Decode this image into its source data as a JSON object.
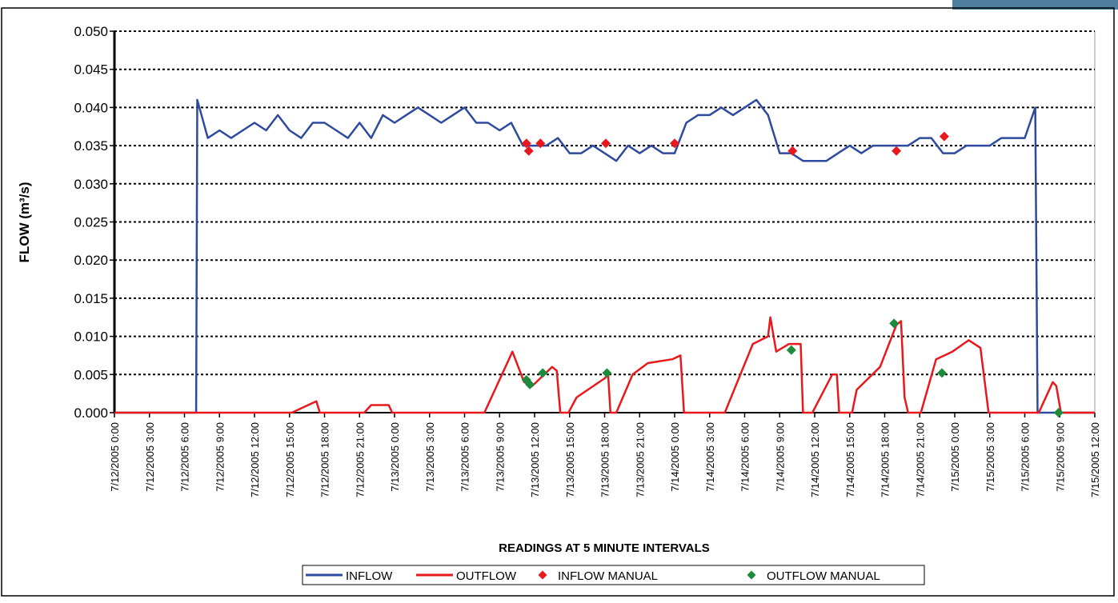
{
  "chart_data": {
    "type": "line",
    "ylabel": "FLOW (m³/s)",
    "xlabel": "READINGS AT 5 MINUTE INTERVALS",
    "xlim": [
      "2005-07-12T00:00",
      "2005-07-15T12:00"
    ],
    "ylim": [
      0,
      0.05
    ],
    "grid": true,
    "legend": "bottom",
    "yticks": [
      {
        "value": 0,
        "label": "0.000"
      },
      {
        "value": 0.005,
        "label": "0.005"
      },
      {
        "value": 0.01,
        "label": "0.010"
      },
      {
        "value": 0.015,
        "label": "0.015"
      },
      {
        "value": 0.02,
        "label": "0.020"
      },
      {
        "value": 0.025,
        "label": "0.025"
      },
      {
        "value": 0.03,
        "label": "0.030"
      },
      {
        "value": 0.035,
        "label": "0.035"
      },
      {
        "value": 0.04,
        "label": "0.040"
      },
      {
        "value": 0.045,
        "label": "0.045"
      },
      {
        "value": 0.05,
        "label": "0.050"
      }
    ],
    "xticks": [
      {
        "value": "2005-07-12T00:00",
        "label": "7/12/2005 0:00"
      },
      {
        "value": "2005-07-12T03:00",
        "label": "7/12/2005 3:00"
      },
      {
        "value": "2005-07-12T06:00",
        "label": "7/12/2005 6:00"
      },
      {
        "value": "2005-07-12T09:00",
        "label": "7/12/2005 9:00"
      },
      {
        "value": "2005-07-12T12:00",
        "label": "7/12/2005 12:00"
      },
      {
        "value": "2005-07-12T15:00",
        "label": "7/12/2005 15:00"
      },
      {
        "value": "2005-07-12T18:00",
        "label": "7/12/2005 18:00"
      },
      {
        "value": "2005-07-12T21:00",
        "label": "7/12/2005 21:00"
      },
      {
        "value": "2005-07-13T00:00",
        "label": "7/13/2005 0:00"
      },
      {
        "value": "2005-07-13T03:00",
        "label": "7/13/2005 3:00"
      },
      {
        "value": "2005-07-13T06:00",
        "label": "7/13/2005 6:00"
      },
      {
        "value": "2005-07-13T09:00",
        "label": "7/13/2005 9:00"
      },
      {
        "value": "2005-07-13T12:00",
        "label": "7/13/2005 12:00"
      },
      {
        "value": "2005-07-13T15:00",
        "label": "7/13/2005 15:00"
      },
      {
        "value": "2005-07-13T18:00",
        "label": "7/13/2005 18:00"
      },
      {
        "value": "2005-07-13T21:00",
        "label": "7/13/2005 21:00"
      },
      {
        "value": "2005-07-14T00:00",
        "label": "7/14/2005 0:00"
      },
      {
        "value": "2005-07-14T03:00",
        "label": "7/14/2005 3:00"
      },
      {
        "value": "2005-07-14T06:00",
        "label": "7/14/2005 6:00"
      },
      {
        "value": "2005-07-14T09:00",
        "label": "7/14/2005 9:00"
      },
      {
        "value": "2005-07-14T12:00",
        "label": "7/14/2005 12:00"
      },
      {
        "value": "2005-07-14T15:00",
        "label": "7/14/2005 15:00"
      },
      {
        "value": "2005-07-14T18:00",
        "label": "7/14/2005 18:00"
      },
      {
        "value": "2005-07-14T21:00",
        "label": "7/14/2005 21:00"
      },
      {
        "value": "2005-07-15T00:00",
        "label": "7/15/2005 0:00"
      },
      {
        "value": "2005-07-15T03:00",
        "label": "7/15/2005 3:00"
      },
      {
        "value": "2005-07-15T06:00",
        "label": "7/15/2005 6:00"
      },
      {
        "value": "2005-07-15T09:00",
        "label": "7/15/2005 9:00"
      },
      {
        "value": "2005-07-15T12:00",
        "label": "7/15/2005 12:00"
      }
    ],
    "series": [
      {
        "name": "INFLOW",
        "color": "#2e4a9e",
        "style": "line",
        "x": [
          "2005-07-12T00:00",
          "2005-07-12T07:00",
          "2005-07-12T07:06",
          "2005-07-12T08:00",
          "2005-07-12T09:00",
          "2005-07-12T10:00",
          "2005-07-12T11:00",
          "2005-07-12T12:00",
          "2005-07-12T13:00",
          "2005-07-12T14:00",
          "2005-07-12T15:00",
          "2005-07-12T16:00",
          "2005-07-12T17:00",
          "2005-07-12T18:00",
          "2005-07-12T19:00",
          "2005-07-12T20:00",
          "2005-07-12T21:00",
          "2005-07-12T22:00",
          "2005-07-12T23:00",
          "2005-07-13T00:00",
          "2005-07-13T01:00",
          "2005-07-13T02:00",
          "2005-07-13T03:00",
          "2005-07-13T04:00",
          "2005-07-13T05:00",
          "2005-07-13T06:00",
          "2005-07-13T07:00",
          "2005-07-13T08:00",
          "2005-07-13T09:00",
          "2005-07-13T10:00",
          "2005-07-13T11:00",
          "2005-07-13T12:00",
          "2005-07-13T13:00",
          "2005-07-13T14:00",
          "2005-07-13T15:00",
          "2005-07-13T16:00",
          "2005-07-13T17:00",
          "2005-07-13T18:00",
          "2005-07-13T19:00",
          "2005-07-13T20:00",
          "2005-07-13T21:00",
          "2005-07-13T22:00",
          "2005-07-13T23:00",
          "2005-07-14T00:00",
          "2005-07-14T01:00",
          "2005-07-14T02:00",
          "2005-07-14T03:00",
          "2005-07-14T04:00",
          "2005-07-14T05:00",
          "2005-07-14T06:00",
          "2005-07-14T07:00",
          "2005-07-14T08:00",
          "2005-07-14T09:00",
          "2005-07-14T10:00",
          "2005-07-14T11:00",
          "2005-07-14T12:00",
          "2005-07-14T13:00",
          "2005-07-14T14:00",
          "2005-07-14T15:00",
          "2005-07-14T16:00",
          "2005-07-14T17:00",
          "2005-07-14T18:00",
          "2005-07-14T19:00",
          "2005-07-14T20:00",
          "2005-07-14T21:00",
          "2005-07-14T22:00",
          "2005-07-14T23:00",
          "2005-07-15T00:00",
          "2005-07-15T01:00",
          "2005-07-15T02:00",
          "2005-07-15T03:00",
          "2005-07-15T04:00",
          "2005-07-15T05:00",
          "2005-07-15T06:00",
          "2005-07-15T06:54",
          "2005-07-15T07:06",
          "2005-07-15T12:00"
        ],
        "values": [
          0,
          0,
          0.041,
          0.036,
          0.037,
          0.036,
          0.037,
          0.038,
          0.037,
          0.039,
          0.037,
          0.036,
          0.038,
          0.038,
          0.037,
          0.036,
          0.038,
          0.036,
          0.039,
          0.038,
          0.039,
          0.04,
          0.039,
          0.038,
          0.039,
          0.04,
          0.038,
          0.038,
          0.037,
          0.038,
          0.035,
          0.035,
          0.035,
          0.036,
          0.034,
          0.034,
          0.035,
          0.034,
          0.033,
          0.035,
          0.034,
          0.035,
          0.034,
          0.034,
          0.038,
          0.039,
          0.039,
          0.04,
          0.039,
          0.04,
          0.041,
          0.039,
          0.034,
          0.034,
          0.033,
          0.033,
          0.033,
          0.034,
          0.035,
          0.034,
          0.035,
          0.035,
          0.035,
          0.035,
          0.036,
          0.036,
          0.034,
          0.034,
          0.035,
          0.035,
          0.035,
          0.036,
          0.036,
          0.036,
          0.04,
          0,
          0
        ]
      },
      {
        "name": "OUTFLOW",
        "color": "#e8181c",
        "style": "line",
        "x": [
          "2005-07-12T00:00",
          "2005-07-12T15:12",
          "2005-07-12T17:18",
          "2005-07-12T17:36",
          "2005-07-12T21:24",
          "2005-07-12T22:00",
          "2005-07-12T23:30",
          "2005-07-12T23:48",
          "2005-07-13T07:42",
          "2005-07-13T10:06",
          "2005-07-13T11:06",
          "2005-07-13T11:48",
          "2005-07-13T13:30",
          "2005-07-13T13:54",
          "2005-07-13T14:12",
          "2005-07-13T14:54",
          "2005-07-13T15:36",
          "2005-07-13T18:00",
          "2005-07-13T18:18",
          "2005-07-13T18:30",
          "2005-07-13T19:00",
          "2005-07-13T20:24",
          "2005-07-13T21:42",
          "2005-07-13T23:48",
          "2005-07-14T00:30",
          "2005-07-14T00:48",
          "2005-07-14T04:18",
          "2005-07-14T06:42",
          "2005-07-14T08:00",
          "2005-07-14T08:12",
          "2005-07-14T08:42",
          "2005-07-14T09:48",
          "2005-07-14T10:48",
          "2005-07-14T11:00",
          "2005-07-14T11:48",
          "2005-07-14T13:30",
          "2005-07-14T13:54",
          "2005-07-14T14:06",
          "2005-07-14T15:12",
          "2005-07-14T15:36",
          "2005-07-14T17:36",
          "2005-07-14T19:00",
          "2005-07-14T19:24",
          "2005-07-14T19:42",
          "2005-07-14T20:00",
          "2005-07-14T21:06",
          "2005-07-14T22:24",
          "2005-07-14T23:48",
          "2005-07-15T01:12",
          "2005-07-15T02:12",
          "2005-07-15T02:54",
          "2005-07-15T07:12",
          "2005-07-15T08:24",
          "2005-07-15T08:42",
          "2005-07-15T09:06",
          "2005-07-15T12:00"
        ],
        "values": [
          0,
          0,
          0.0015,
          0,
          0,
          0.001,
          0.001,
          0,
          0,
          0.008,
          0.004,
          0.0035,
          0.006,
          0.0055,
          0,
          0,
          0.002,
          0.0045,
          0.005,
          0,
          0,
          0.005,
          0.0065,
          0.007,
          0.0075,
          0,
          0,
          0.009,
          0.01,
          0.0125,
          0.008,
          0.009,
          0.009,
          0,
          0,
          0.005,
          0.005,
          0,
          0,
          0.003,
          0.006,
          0.0115,
          0.012,
          0.002,
          0,
          0,
          0.007,
          0.008,
          0.0095,
          0.0085,
          0,
          0,
          0.004,
          0.0035,
          0,
          0
        ]
      },
      {
        "name": "INFLOW MANUAL",
        "color": "#e8181c",
        "style": "marker",
        "x": [
          "2005-07-13T11:18",
          "2005-07-13T11:30",
          "2005-07-13T12:30",
          "2005-07-13T18:06",
          "2005-07-14T00:00",
          "2005-07-14T10:06",
          "2005-07-14T19:00",
          "2005-07-14T23:06"
        ],
        "values": [
          0.0353,
          0.0343,
          0.0353,
          0.0353,
          0.0353,
          0.0343,
          0.0343,
          0.0362
        ]
      },
      {
        "name": "OUTFLOW MANUAL",
        "color": "#1e8a3c",
        "style": "marker",
        "x": [
          "2005-07-13T11:18",
          "2005-07-13T11:36",
          "2005-07-13T12:42",
          "2005-07-13T18:12",
          "2005-07-14T10:00",
          "2005-07-14T18:48",
          "2005-07-14T22:54",
          "2005-07-15T08:54"
        ],
        "values": [
          0.0043,
          0.0037,
          0.0052,
          0.0052,
          0.0082,
          0.0117,
          0.0052,
          0
        ]
      }
    ]
  }
}
